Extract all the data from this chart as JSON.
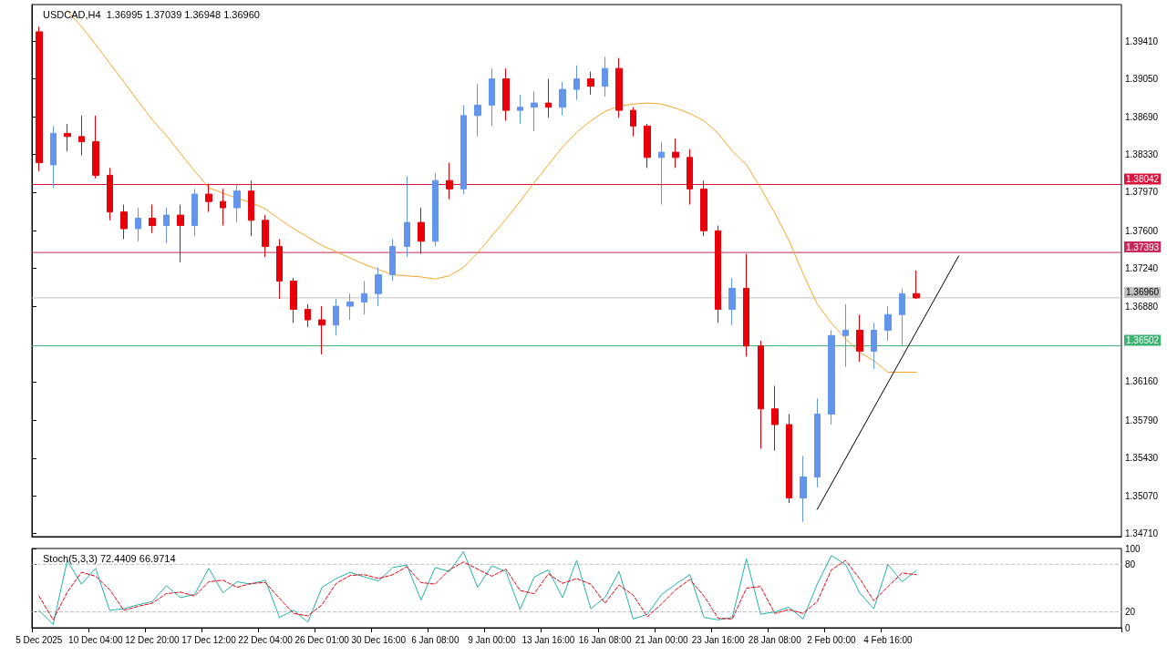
{
  "chart_data": [
    {
      "type": "candlestick",
      "title": "USDCAD,H4  1.36995 1.37039 1.36948 1.36960",
      "categories": [
        null,
        null,
        null,
        null,
        null,
        null,
        null,
        null,
        null,
        null,
        null,
        null,
        null,
        null,
        null,
        null,
        null,
        null,
        null,
        null,
        null,
        null,
        null,
        null,
        null,
        null,
        null,
        null,
        null,
        null,
        null,
        null,
        null,
        null,
        null,
        null,
        null,
        null,
        null,
        null,
        null,
        null,
        null,
        null,
        null,
        null,
        null,
        null,
        null,
        null,
        null,
        null,
        null,
        null,
        null,
        null,
        null,
        null,
        null,
        null,
        null,
        null,
        null,
        null,
        null,
        null,
        null,
        null,
        null,
        null,
        null,
        null,
        null,
        null,
        null,
        null,
        null
      ],
      "ohlc": [
        [
          1.395,
          1.3955,
          1.3817,
          1.3825
        ],
        [
          1.3823,
          1.386,
          1.3801,
          1.3853
        ],
        [
          1.3853,
          1.3862,
          1.3836,
          1.385
        ],
        [
          1.385,
          1.387,
          1.3832,
          1.3845
        ],
        [
          1.3845,
          1.387,
          1.381,
          1.3813
        ],
        [
          1.3813,
          1.382,
          1.377,
          1.3778
        ],
        [
          1.3778,
          1.3785,
          1.3752,
          1.3762
        ],
        [
          1.3762,
          1.3782,
          1.375,
          1.3772
        ],
        [
          1.3772,
          1.3785,
          1.3758,
          1.3765
        ],
        [
          1.3765,
          1.3782,
          1.3748,
          1.3775
        ],
        [
          1.3775,
          1.3785,
          1.373,
          1.3765
        ],
        [
          1.3765,
          1.38,
          1.3755,
          1.3795
        ],
        [
          1.3795,
          1.3805,
          1.3778,
          1.3788
        ],
        [
          1.3788,
          1.38,
          1.3765,
          1.3782
        ],
        [
          1.3782,
          1.3805,
          1.3768,
          1.3798
        ],
        [
          1.3798,
          1.3808,
          1.3755,
          1.377
        ],
        [
          1.377,
          1.3775,
          1.3735,
          1.3745
        ],
        [
          1.3745,
          1.3752,
          1.3695,
          1.3712
        ],
        [
          1.3712,
          1.3715,
          1.3672,
          1.3685
        ],
        [
          1.3685,
          1.369,
          1.3668,
          1.3675
        ],
        [
          1.3675,
          1.3688,
          1.3642,
          1.367
        ],
        [
          1.367,
          1.3695,
          1.366,
          1.3688
        ],
        [
          1.3688,
          1.37,
          1.3675,
          1.3692
        ],
        [
          1.3692,
          1.3712,
          1.368,
          1.37
        ],
        [
          1.37,
          1.3725,
          1.3688,
          1.3718
        ],
        [
          1.3718,
          1.3752,
          1.3712,
          1.3745
        ],
        [
          1.3745,
          1.3812,
          1.3735,
          1.3768
        ],
        [
          1.3768,
          1.3782,
          1.3738,
          1.375
        ],
        [
          1.375,
          1.3815,
          1.3745,
          1.3808
        ],
        [
          1.3808,
          1.3825,
          1.379,
          1.38
        ],
        [
          1.38,
          1.388,
          1.3795,
          1.387
        ],
        [
          1.387,
          1.39,
          1.385,
          1.388
        ],
        [
          1.388,
          1.3915,
          1.386,
          1.3905
        ],
        [
          1.3905,
          1.3915,
          1.3865,
          1.3875
        ],
        [
          1.3875,
          1.389,
          1.3862,
          1.3878
        ],
        [
          1.3878,
          1.3893,
          1.3855,
          1.3882
        ],
        [
          1.3882,
          1.3905,
          1.3868,
          1.3878
        ],
        [
          1.3878,
          1.3902,
          1.387,
          1.3895
        ],
        [
          1.3895,
          1.3918,
          1.3885,
          1.3905
        ],
        [
          1.3905,
          1.3912,
          1.389,
          1.3898
        ],
        [
          1.3898,
          1.3926,
          1.3888,
          1.3915
        ],
        [
          1.3915,
          1.3925,
          1.3868,
          1.3875
        ],
        [
          1.3875,
          1.3878,
          1.385,
          1.386
        ],
        [
          1.386,
          1.3862,
          1.382,
          1.383
        ],
        [
          1.383,
          1.3845,
          1.3785,
          1.3835
        ],
        [
          1.3835,
          1.3848,
          1.382,
          1.383
        ],
        [
          1.383,
          1.3838,
          1.3785,
          1.38
        ],
        [
          1.38,
          1.3808,
          1.3755,
          1.376
        ],
        [
          1.376,
          1.3765,
          1.3672,
          1.3685
        ],
        [
          1.3685,
          1.3715,
          1.367,
          1.3705
        ],
        [
          1.3705,
          1.3738,
          1.364,
          1.365
        ],
        [
          1.365,
          1.3655,
          1.3552,
          1.359
        ],
        [
          1.359,
          1.3612,
          1.355,
          1.3575
        ],
        [
          1.3575,
          1.3585,
          1.35,
          1.3505
        ],
        [
          1.3505,
          1.3545,
          1.3482,
          1.3525
        ],
        [
          1.3525,
          1.36,
          1.3515,
          1.3585
        ],
        [
          1.3585,
          1.3665,
          1.3575,
          1.366
        ],
        [
          1.366,
          1.369,
          1.363,
          1.3665
        ],
        [
          1.3665,
          1.368,
          1.3635,
          1.3645
        ],
        [
          1.3645,
          1.3672,
          1.3628,
          1.3665
        ],
        [
          1.3665,
          1.3688,
          1.3655,
          1.368
        ],
        [
          1.368,
          1.3705,
          1.365,
          1.37
        ],
        [
          1.37,
          1.3722,
          1.3695,
          1.3696
        ],
        null,
        null,
        null,
        null,
        null,
        null,
        null,
        null,
        null,
        null,
        null,
        null,
        null,
        null
      ],
      "colors": [
        "#e8000b",
        "#6495ed",
        "#e8000b",
        "#e8000b",
        "#e8000b",
        "#e8000b",
        "#e8000b",
        "#6495ed",
        "#e8000b",
        "#6495ed",
        "#e8000b",
        "#6495ed",
        "#e8000b",
        "#e8000b",
        "#6495ed",
        "#e8000b",
        "#e8000b",
        "#e8000b",
        "#e8000b",
        "#e8000b",
        "#e8000b",
        "#6495ed",
        "#6495ed",
        "#6495ed",
        "#6495ed",
        "#6495ed",
        "#6495ed",
        "#e8000b",
        "#6495ed",
        "#e8000b",
        "#6495ed",
        "#6495ed",
        "#6495ed",
        "#e8000b",
        "#6495ed",
        "#6495ed",
        "#e8000b",
        "#6495ed",
        "#6495ed",
        "#e8000b",
        "#6495ed",
        "#e8000b",
        "#e8000b",
        "#e8000b",
        "#6495ed",
        "#e8000b",
        "#e8000b",
        "#e8000b",
        "#e8000b",
        "#6495ed",
        "#e8000b",
        "#e8000b",
        "#e8000b",
        "#e8000b",
        "#6495ed",
        "#6495ed",
        "#6495ed",
        "#6495ed",
        "#e8000b",
        "#6495ed",
        "#6495ed",
        "#6495ed",
        "#e8000b",
        null,
        null,
        null,
        null,
        null,
        null,
        null,
        null,
        null,
        null,
        null,
        null,
        null,
        null
      ],
      "series": [
        {
          "type": "line",
          "color": "#f5a623",
          "values": [
            null,
            null,
            1.397,
            1.3955,
            1.3938,
            1.392,
            1.3902,
            1.3884,
            1.3866,
            1.3851,
            1.3834,
            1.3817,
            1.3801,
            1.3796,
            1.3791,
            1.3787,
            1.3781,
            1.3771,
            1.3762,
            1.3754,
            1.3746,
            1.374,
            1.3734,
            1.3728,
            1.3723,
            1.3718,
            1.3717,
            1.3716,
            1.3714,
            1.3717,
            1.3725,
            1.3739,
            1.3755,
            1.3771,
            1.3788,
            1.3806,
            1.3823,
            1.384,
            1.3854,
            1.3865,
            1.3874,
            1.3879,
            1.3881,
            1.3882,
            1.3881,
            1.3877,
            1.3872,
            1.3865,
            1.3853,
            1.3836,
            1.3823,
            1.3801,
            1.3777,
            1.3751,
            1.3719,
            1.369,
            1.3672,
            1.3657,
            1.3644,
            1.3636,
            1.3625,
            1.3625,
            1.3625,
            null,
            null,
            null,
            null,
            null,
            null,
            null,
            null,
            null,
            null,
            null,
            null,
            null,
            null
          ]
        },
        {
          "type": "line",
          "color": "#000000",
          "values": [
            null,
            null,
            null,
            null,
            null,
            null,
            null,
            null,
            null,
            null,
            null,
            null,
            null,
            null,
            null,
            null,
            null,
            null,
            null,
            null,
            null,
            null,
            null,
            null,
            null,
            null,
            null,
            null,
            null,
            null,
            null,
            null,
            null,
            null,
            null,
            null,
            null,
            null,
            null,
            null,
            null,
            null,
            null,
            null,
            null,
            null,
            null,
            null,
            null,
            null,
            null,
            null,
            null,
            null,
            null,
            1.3494,
            null,
            null,
            null,
            null,
            null,
            null,
            null,
            null,
            null,
            1.3736,
            null,
            null,
            null,
            null,
            null,
            null,
            null,
            null,
            null,
            null,
            null
          ]
        }
      ],
      "ylim": [
        1.3468,
        1.3976
      ],
      "yticks": [
        {
          "value": 1.3471,
          "label": "1.34710"
        },
        {
          "value": 1.3507,
          "label": "1.35070"
        },
        {
          "value": 1.3543,
          "label": "1.35430"
        },
        {
          "value": 1.3579,
          "label": "1.35790"
        },
        {
          "value": 1.3616,
          "label": "1.36160"
        },
        {
          "value": 1.3688,
          "label": "1.36880"
        },
        {
          "value": 1.3724,
          "label": "1.37240"
        },
        {
          "value": 1.376,
          "label": "1.37600"
        },
        {
          "value": 1.3797,
          "label": "1.37970"
        },
        {
          "value": 1.3833,
          "label": "1.38330"
        },
        {
          "value": 1.3869,
          "label": "1.38690"
        },
        {
          "value": 1.3905,
          "label": "1.39050"
        },
        {
          "value": 1.3941,
          "label": "1.39410"
        }
      ],
      "ref_lines": [
        {
          "axis": "y",
          "value": 1.38042,
          "label": "1.38042",
          "color": "#dc143c"
        },
        {
          "axis": "y",
          "value": 1.37393,
          "label": "1.37393",
          "color": "#c8285a"
        },
        {
          "axis": "y",
          "value": 1.3696,
          "label": "1.36960",
          "color": "#c0c0c0"
        },
        {
          "axis": "y",
          "value": 1.36502,
          "label": "1.36502",
          "color": "#3cb371"
        }
      ],
      "marker": "none"
    },
    {
      "type": "line",
      "title": "Stoch(5,3,3) 72.4409 66.9714",
      "categories": [
        "5 Dec 2025",
        null,
        null,
        null,
        "10 Dec 04:00",
        null,
        null,
        null,
        "12 Dec 20:00",
        null,
        null,
        null,
        "17 Dec 12:00",
        null,
        null,
        null,
        "22 Dec 04:00",
        null,
        null,
        null,
        "26 Dec 01:00",
        null,
        null,
        null,
        "30 Dec 16:00",
        null,
        null,
        null,
        "6 Jan 08:00",
        null,
        null,
        null,
        "9 Jan 00:00",
        null,
        null,
        null,
        "13 Jan 16:00",
        null,
        null,
        null,
        "16 Jan 08:00",
        null,
        null,
        null,
        "21 Jan 00:00",
        null,
        null,
        null,
        "23 Jan 16:00",
        null,
        null,
        null,
        "28 Jan 08:00",
        null,
        null,
        null,
        "2 Feb 00:00",
        null,
        null,
        null,
        "4 Feb 16:00",
        null,
        null,
        null,
        null,
        null,
        null,
        null,
        null,
        null,
        null,
        null,
        null,
        null,
        null,
        null,
        null
      ],
      "series": [
        {
          "color": "#20b2aa",
          "values": [
            22,
            4,
            85,
            55,
            75,
            22,
            24,
            29,
            33,
            53,
            38,
            42,
            75,
            44,
            58,
            55,
            60,
            13,
            22,
            7,
            51,
            62,
            70,
            64,
            59,
            76,
            79,
            35,
            76,
            71,
            96,
            51,
            78,
            71,
            23,
            64,
            73,
            38,
            85,
            24,
            38,
            71,
            11,
            17,
            42,
            55,
            67,
            13,
            10,
            13,
            87,
            17,
            20,
            26,
            11,
            55,
            91,
            80,
            44,
            24,
            80,
            58,
            72,
            null,
            null,
            null,
            null,
            null,
            null,
            null,
            null,
            null,
            null,
            null,
            null,
            null,
            null
          ]
        },
        {
          "color": "#e8000b",
          "line_style": "dashed",
          "values": [
            40,
            10,
            45,
            70,
            65,
            48,
            22,
            27,
            31,
            43,
            45,
            40,
            58,
            60,
            51,
            56,
            57,
            37,
            18,
            15,
            29,
            56,
            66,
            67,
            62,
            67,
            77,
            57,
            55,
            73,
            83,
            74,
            65,
            74,
            47,
            43,
            68,
            56,
            62,
            55,
            31,
            54,
            41,
            14,
            30,
            48,
            61,
            40,
            12,
            11,
            50,
            52,
            18,
            23,
            18,
            33,
            73,
            85,
            62,
            34,
            52,
            69,
            67,
            null,
            null,
            null,
            null,
            null,
            null,
            null,
            null,
            null,
            null,
            null,
            null,
            null,
            null
          ]
        }
      ],
      "ylim": [
        0,
        100
      ],
      "yticks": [
        0,
        20,
        80,
        100
      ],
      "ref_lines": [
        {
          "axis": "y",
          "value": 20,
          "color": "#c0c0c0",
          "line_style": "dashed"
        },
        {
          "axis": "y",
          "value": 80,
          "color": "#c0c0c0",
          "line_style": "dashed"
        }
      ],
      "marker": "none"
    }
  ]
}
